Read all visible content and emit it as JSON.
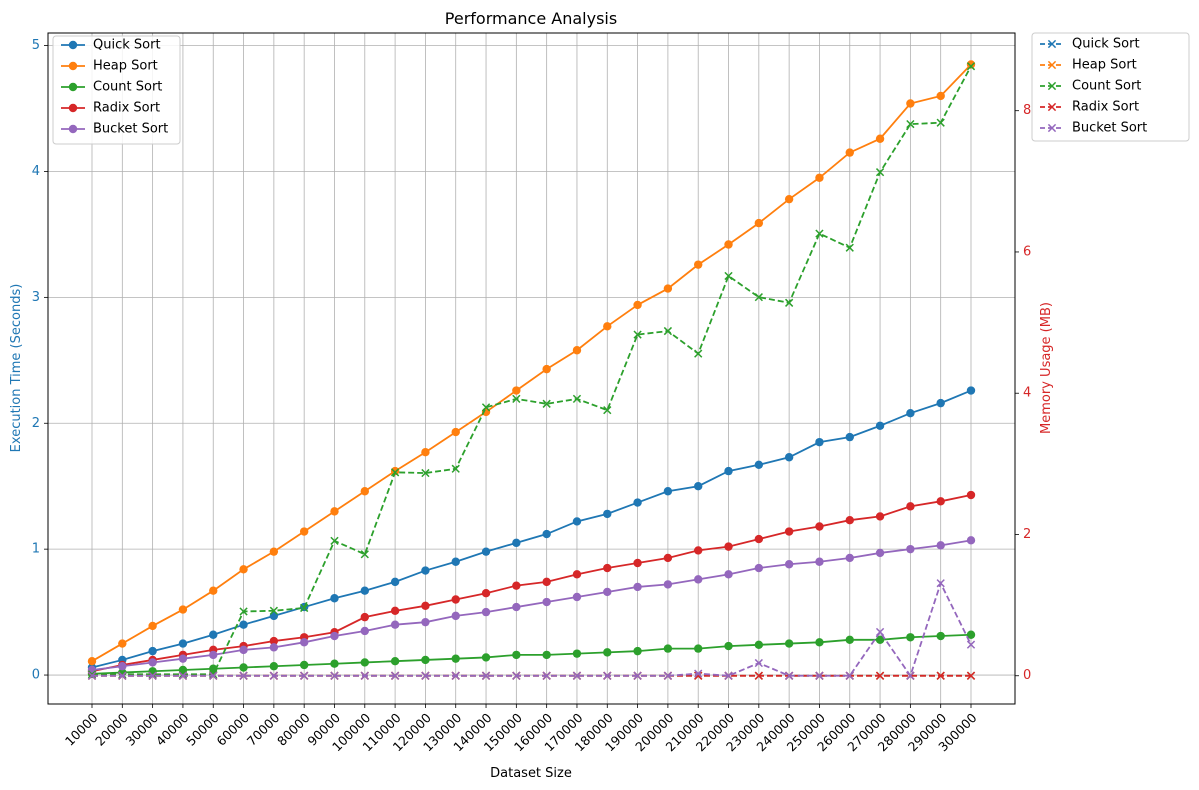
{
  "chart_data": {
    "type": "line",
    "title": "Performance Analysis",
    "xlabel": "Dataset Size",
    "ylabel_left": "Execution Time (Seconds)",
    "ylabel_right": "Memory Usage (MB)",
    "ylim_left": [
      -0.23,
      5.1
    ],
    "ylim_right": [
      -0.4,
      9.1
    ],
    "left_ticks": [
      0,
      1,
      2,
      3,
      4,
      5
    ],
    "right_ticks": [
      0,
      2,
      4,
      6,
      8
    ],
    "left_axis_color": "#1f77b4",
    "right_axis_color": "#d62728",
    "grid": true,
    "x": [
      "10000",
      "20000",
      "30000",
      "40000",
      "50000",
      "60000",
      "70000",
      "80000",
      "90000",
      "100000",
      "110000",
      "120000",
      "130000",
      "140000",
      "150000",
      "160000",
      "170000",
      "180000",
      "190000",
      "200000",
      "210000",
      "220000",
      "230000",
      "240000",
      "250000",
      "260000",
      "270000",
      "280000",
      "290000",
      "300000"
    ],
    "legend_left_position": "upper-left",
    "legend_right_position": "outside-right",
    "time_series": [
      {
        "name": "Quick Sort",
        "color": "#1f77b4",
        "values": [
          0.06,
          0.12,
          0.19,
          0.25,
          0.32,
          0.4,
          0.47,
          0.54,
          0.61,
          0.67,
          0.74,
          0.83,
          0.9,
          0.98,
          1.05,
          1.12,
          1.22,
          1.28,
          1.37,
          1.46,
          1.5,
          1.62,
          1.67,
          1.73,
          1.85,
          1.89,
          1.98,
          2.08,
          2.16,
          2.26
        ]
      },
      {
        "name": "Heap Sort",
        "color": "#ff7f0e",
        "values": [
          0.11,
          0.25,
          0.39,
          0.52,
          0.67,
          0.84,
          0.98,
          1.14,
          1.3,
          1.46,
          1.62,
          1.77,
          1.93,
          2.09,
          2.26,
          2.43,
          2.58,
          2.77,
          2.94,
          3.07,
          3.26,
          3.42,
          3.59,
          3.78,
          3.95,
          4.15,
          4.26,
          4.54,
          4.6,
          4.85
        ]
      },
      {
        "name": "Count Sort",
        "color": "#2ca02c",
        "values": [
          0.01,
          0.02,
          0.03,
          0.04,
          0.05,
          0.06,
          0.07,
          0.08,
          0.09,
          0.1,
          0.11,
          0.12,
          0.13,
          0.14,
          0.16,
          0.16,
          0.17,
          0.18,
          0.19,
          0.21,
          0.21,
          0.23,
          0.24,
          0.25,
          0.26,
          0.28,
          0.28,
          0.3,
          0.31,
          0.32
        ]
      },
      {
        "name": "Radix Sort",
        "color": "#d62728",
        "values": [
          0.03,
          0.08,
          0.12,
          0.16,
          0.2,
          0.23,
          0.27,
          0.3,
          0.34,
          0.46,
          0.51,
          0.55,
          0.6,
          0.65,
          0.71,
          0.74,
          0.8,
          0.85,
          0.89,
          0.93,
          0.99,
          1.02,
          1.08,
          1.14,
          1.18,
          1.23,
          1.26,
          1.34,
          1.38,
          1.43
        ]
      },
      {
        "name": "Bucket Sort",
        "color": "#9467bd",
        "values": [
          0.04,
          0.07,
          0.1,
          0.13,
          0.16,
          0.2,
          0.22,
          0.26,
          0.31,
          0.35,
          0.4,
          0.42,
          0.47,
          0.5,
          0.54,
          0.58,
          0.62,
          0.66,
          0.7,
          0.72,
          0.76,
          0.8,
          0.85,
          0.88,
          0.9,
          0.93,
          0.97,
          1.0,
          1.03,
          1.07
        ]
      }
    ],
    "memory_series": [
      {
        "name": "Quick Sort",
        "color": "#1f77b4",
        "values": [
          0,
          0,
          0,
          0,
          0,
          0,
          0,
          0,
          0,
          0,
          0,
          0,
          0,
          0,
          0,
          0,
          0,
          0,
          0,
          0,
          0,
          0,
          0,
          0,
          0,
          0,
          0,
          0,
          0,
          0
        ]
      },
      {
        "name": "Heap Sort",
        "color": "#ff7f0e",
        "values": [
          0,
          0,
          0,
          0,
          0,
          0,
          0,
          0,
          0,
          0,
          0,
          0,
          0,
          0,
          0,
          0,
          0,
          0,
          0,
          0,
          0,
          0,
          0,
          0,
          0,
          0,
          0,
          0,
          0,
          0
        ]
      },
      {
        "name": "Count Sort",
        "color": "#2ca02c",
        "values": [
          0.02,
          0.02,
          0.02,
          0.02,
          0.02,
          0.91,
          0.92,
          0.96,
          1.91,
          1.72,
          2.88,
          2.87,
          2.93,
          3.8,
          3.92,
          3.85,
          3.92,
          3.76,
          4.83,
          4.88,
          4.56,
          5.66,
          5.36,
          5.28,
          6.26,
          6.06,
          7.13,
          7.81,
          7.83,
          8.63
        ]
      },
      {
        "name": "Radix Sort",
        "color": "#d62728",
        "values": [
          0,
          0,
          0,
          0,
          0,
          0,
          0,
          0,
          0,
          0,
          0,
          0,
          0,
          0,
          0,
          0,
          0,
          0,
          0,
          0,
          0,
          0,
          0,
          0,
          0,
          0,
          0,
          0,
          0,
          0
        ]
      },
      {
        "name": "Bucket Sort",
        "color": "#9467bd",
        "values": [
          0,
          0,
          0,
          0,
          0,
          0,
          0,
          0,
          0,
          0,
          0,
          0,
          0,
          0,
          0,
          0,
          0,
          0,
          0,
          0,
          0.03,
          0,
          0.18,
          0,
          0,
          0,
          0.62,
          0,
          1.31,
          0.44
        ]
      }
    ]
  }
}
